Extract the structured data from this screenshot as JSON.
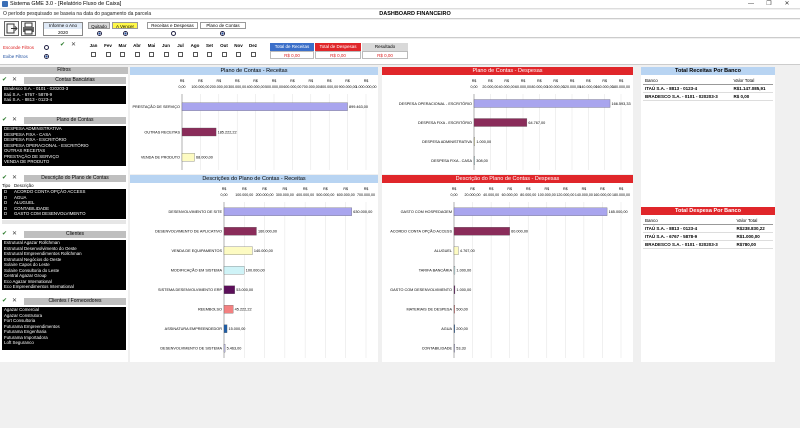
{
  "window": {
    "title": "Sistema GME 3.0 - [Relatório Fluxo de Caixa]",
    "minimize": "—",
    "maximize": "❐",
    "close": "✕"
  },
  "infobar": {
    "message": "O período pesquisado se baseia na data do pagamento da parcela",
    "dashboard_title": "DASHBOARD FINANCEIRO"
  },
  "toolbar": {
    "exit_icon": "exit-icon",
    "print_icon": "printer-icon",
    "year_label": "Informe o Ano",
    "year_value": "2020",
    "status_paid": "Quitado",
    "status_due": "A Vencer",
    "tab_revenues_expenses": "Receitas e Despesas",
    "tab_chart_accounts": "Plano de Contas"
  },
  "filters": {
    "hide_filters": "Esconde Filtros",
    "show_filters": "Exibe Filtros",
    "months": [
      "Jan",
      "Fev",
      "Mar",
      "Abr",
      "Mai",
      "Jun",
      "Jul",
      "Ago",
      "Set",
      "Out",
      "Nov",
      "Dez"
    ],
    "total_revenues_label": "Total de Receitas",
    "total_revenues_value": "R$ 0,00",
    "total_expenses_label": "Total de Despesas",
    "total_expenses_value": "R$ 0,00",
    "result_label": "Resultado",
    "result_value": "R$ 0,00"
  },
  "left": {
    "filters_title": "Filtros",
    "bank_accounts_title": "Contas Bancárias",
    "bank_accounts": [
      "Bradesco S.A. - 0101 - 020203-3",
      "Itaú S.A. - 6767 - 5878-9",
      "Itaú S.A. - 8813 - 0123-4"
    ],
    "chart_accounts_title": "Plano de Contas",
    "chart_accounts": [
      "DESPESA ADMINISTRATIVA",
      "DESPESA FIXA - CASA",
      "DESPESA FIXA - ESCRITÓRIO",
      "DESPESA OPERACIONAL - ESCRITÓRIO",
      "OUTRAS RECEITAS",
      "PRESTAÇÃO DE SERVIÇO",
      "VENDA DE PRODUTO"
    ],
    "description_title": "Descrição do Plano de Contas",
    "description_cols": [
      "Tipo",
      "Descrição"
    ],
    "descriptions": [
      [
        "D",
        "ACORDO CONTA OPÇÃO ACCESS"
      ],
      [
        "D",
        "AGUA"
      ],
      [
        "D",
        "ALUGUEL"
      ],
      [
        "D",
        "CONTABILIDADE"
      ],
      [
        "D",
        "GASTO COM DESENVOLVIMENTO"
      ]
    ],
    "clients_title": "Clientes",
    "clients": [
      "Estrutural Agazar Rollchman",
      "Estrutural Desenvolvimento do Oeste",
      "Estrutural Empreendimentos Rollchman",
      "Estrutural Negócios do Oeste",
      "Solaire Capos do Leste",
      "Solaire Consultoria do Leste",
      "Central Agazar Group",
      "Eco Agazar International",
      "Eco Empreendimentos International"
    ],
    "suppliers_title": "Clientes / Fornecedores",
    "suppliers": [
      "Agazar Comercial",
      "Agazar Construtora",
      "Fort Consultoria",
      "Futurama Empreendimentos",
      "Futurama Engenharia",
      "Futurama Importadora",
      "Loft Seguranco"
    ]
  },
  "panels": {
    "revenue_plan_title": "Plano de Contas - Receitas",
    "expense_plan_title": "Plano de Contas - Despesas",
    "revenue_desc_title": "Descrições do Plano de Contas - Receitas",
    "expense_desc_title": "Descrição do Plano de Contas - Despesas",
    "total_rev_bank_title": "Total Receitas Por Banco",
    "total_exp_bank_title": "Total Despesa Por Banco"
  },
  "bank_tables": {
    "cols": [
      "Banco",
      "Valor Total"
    ],
    "revenue_rows": [
      [
        "ITAÚ S.A. - 8813 - 0123-4",
        "R$1.147.085,91"
      ],
      [
        "BRADESCO S.A. - 0101 - 020203-3",
        "R$ 0,00"
      ]
    ],
    "expense_rows": [
      [
        "ITAÚ S.A. - 8813 - 0123-4",
        "R$238.830,22"
      ],
      [
        "ITAÚ S.A. - 6767 - 5878-9",
        "R$1.000,00"
      ],
      [
        "BRADESCO S.A. - 0101 - 020203-3",
        "R$780,00"
      ]
    ]
  },
  "chart_data": [
    {
      "type": "bar",
      "orientation": "horizontal",
      "title": "Plano de Contas - Receitas",
      "categories": [
        "PRESTAÇÃO DE SERVIÇO",
        "OUTRAS RECEITAS",
        "VENDA DE PRODUTO"
      ],
      "values": [
        899463.0,
        185222.22,
        68000.0
      ],
      "value_labels": [
        "899.463,00",
        "185.222,22",
        "68.000,00"
      ],
      "colors": [
        "#a9a5ee",
        "#8a2c5a",
        "#fdfbc2"
      ],
      "xticks": [
        "R$ 0,00",
        "R$ 100.000,00",
        "R$ 200.000,00",
        "R$ 300.000,00",
        "R$ 400.000,00",
        "R$ 500.000,00",
        "R$ 600.000,00",
        "R$ 700.000,00",
        "R$ 800.000,00",
        "R$ 900.000,00",
        "R$ 1.000.000,00"
      ],
      "xlim": [
        0,
        1000000
      ]
    },
    {
      "type": "bar",
      "orientation": "horizontal",
      "title": "Plano de Contas - Despesas",
      "categories": [
        "DESPESA OPERACIONAL - ESCRITÓRIO",
        "DESPESA FIXA - ESCRITÓRIO",
        "DESPESA ADMINISTRATIVA",
        "DESPESA FIXA - CASA"
      ],
      "values": [
        166593.33,
        64767.0,
        1000.0,
        308.0
      ],
      "value_labels": [
        "166.593,33",
        "64.767,00",
        "1.000,00",
        "308,00"
      ],
      "colors": [
        "#a9a5ee",
        "#8a2c5a",
        "#fdfbc2",
        "#cff3f7"
      ],
      "xticks": [
        "R$ 0,00",
        "R$ 20.000,00",
        "R$ 40.000,00",
        "R$ 60.000,00",
        "R$ 80.000,00",
        "R$ 100.000,00",
        "R$ 120.000,00",
        "R$ 140.000,00",
        "R$ 160.000,00",
        "R$ 180.000,00"
      ],
      "xlim": [
        0,
        180000
      ]
    },
    {
      "type": "bar",
      "orientation": "horizontal",
      "title": "Descrições do Plano de Contas - Receitas",
      "categories": [
        "DESENVOLVIMENTO DE SITE",
        "DESENVOLVIMENTO DE APLICATIVO",
        "VENDA DE EQUIPAMENTOS",
        "MODIFICAÇÃO EM SISTEMA",
        "SISTEMA DESENVOLVIMENTO ERP",
        "REEMBOLSO",
        "ASSINATURA EMPREENDEDOR",
        "DESENVOLVIMENTO DE SISTEMA"
      ],
      "values": [
        630000.0,
        160000.0,
        140000.0,
        100000.0,
        53000.0,
        45222.22,
        15000.0,
        5463.0
      ],
      "value_labels": [
        "630.000,00",
        "160.000,00",
        "140.000,00",
        "100.000,00",
        "53.000,00",
        "45.222,22",
        "15.000,00",
        "5.463,00"
      ],
      "colors": [
        "#a9a5ee",
        "#8a2c5a",
        "#fdfbc2",
        "#cff3f7",
        "#5c0f5a",
        "#f38080",
        "#1e5ea8",
        "#c9c6f2"
      ],
      "xticks": [
        "R$ 0,00",
        "R$ 100.000,00",
        "R$ 200.000,00",
        "R$ 300.000,00",
        "R$ 400.000,00",
        "R$ 500.000,00",
        "R$ 600.000,00",
        "R$ 700.000,00"
      ],
      "xlim": [
        0,
        700000
      ]
    },
    {
      "type": "bar",
      "orientation": "horizontal",
      "title": "Descrição do Plano de Contas - Despesas",
      "categories": [
        "GASTO COM HOSPEDAGEM",
        "ACORDO CONTA OPÇÃO ACCESS",
        "ALUGUEL",
        "TARIFA BANCÁRIA",
        "GASTO COM DESENVOLVIMENTO",
        "MATERIAIS DE DESPESA",
        "AGUA",
        "CONTABILIDADE"
      ],
      "values": [
        165000.0,
        60000.0,
        4767.0,
        1000.0,
        1000.0,
        500.0,
        200.0,
        53.33
      ],
      "value_labels": [
        "165.000,00",
        "60.000,00",
        "4.767,00",
        "1.000,00",
        "1.000,00",
        "500,00",
        "200,00",
        "53,33"
      ],
      "colors": [
        "#a9a5ee",
        "#8a2c5a",
        "#fdfbc2",
        "#cff3f7",
        "#5c0f5a",
        "#f38080",
        "#1e5ea8",
        "#c9c6f2"
      ],
      "xticks": [
        "R$ 0,00",
        "R$ 20.000,00",
        "R$ 40.000,00",
        "R$ 60.000,00",
        "R$ 80.000,00",
        "R$ 100.000,00",
        "R$ 120.000,00",
        "R$ 140.000,00",
        "R$ 160.000,00",
        "R$ 180.000,00"
      ],
      "xlim": [
        0,
        180000
      ]
    }
  ]
}
